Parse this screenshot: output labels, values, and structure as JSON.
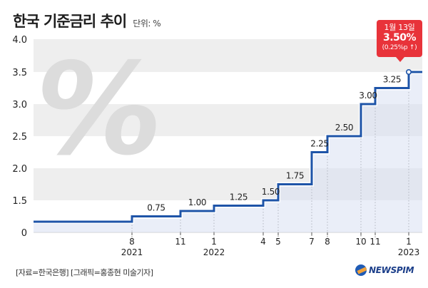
{
  "header": {
    "title": "한국 기준금리 추이",
    "unit": "단위: %"
  },
  "chart_data": {
    "type": "line",
    "title": "한국 기준금리 추이",
    "ylabel": "%",
    "ylim": [
      0,
      4.0
    ],
    "y_ticks": [
      "0",
      "1.5",
      "2.0",
      "2.5",
      "3.0",
      "3.5",
      "4.0"
    ],
    "y_tick_values": [
      0,
      1.5,
      2.0,
      2.5,
      3.0,
      3.5,
      4.0
    ],
    "x_ticks": [
      {
        "month": "8",
        "year": "2021"
      },
      {
        "month": "11",
        "year": ""
      },
      {
        "month": "1",
        "year": "2022"
      },
      {
        "month": "4",
        "year": ""
      },
      {
        "month": "5",
        "year": ""
      },
      {
        "month": "7",
        "year": ""
      },
      {
        "month": "8",
        "year": ""
      },
      {
        "month": "10",
        "year": ""
      },
      {
        "month": "11",
        "year": ""
      },
      {
        "month": "1",
        "year": "2023"
      }
    ],
    "values": [
      0.75,
      1.0,
      1.25,
      1.5,
      1.75,
      2.25,
      2.5,
      3.0,
      3.25,
      3.5
    ],
    "point_labels": [
      "0.75",
      "1.00",
      "1.25",
      "1.50",
      "1.75",
      "2.25",
      "2.50",
      "3.00",
      "3.25",
      ""
    ],
    "start_value": 0.5,
    "series_color": "#1e54a8",
    "highlight_color": "#e8333a",
    "annotation": {
      "date": "1월 13일",
      "value": "3.50%",
      "change": "(0.25%p ↑)"
    }
  },
  "footer": {
    "source": "[자료=한국은행] [그래픽=홍종현 미술기자]",
    "logo": "NEWSPIM"
  }
}
